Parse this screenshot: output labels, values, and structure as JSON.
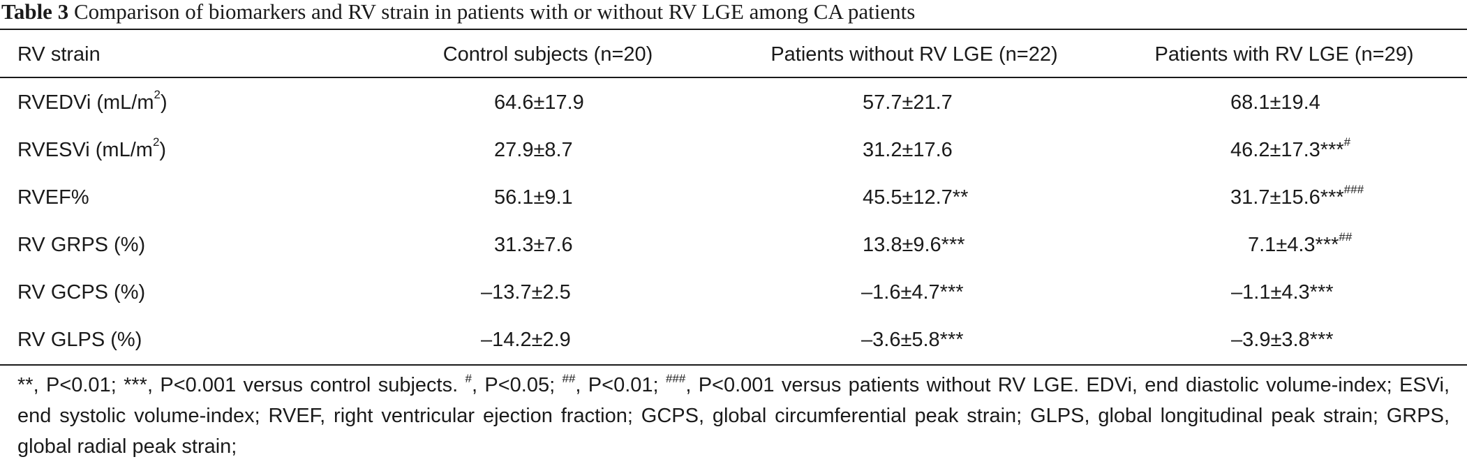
{
  "caption": {
    "label": "Table 3",
    "text": "Comparison of biomarkers and RV strain in patients with or without RV LGE among CA patients"
  },
  "table": {
    "headers": [
      "RV strain",
      "Control subjects (n=20)",
      "Patients without RV LGE (n=22)",
      "Patients with RV LGE (n=29)"
    ],
    "rows": [
      {
        "label": "RVEDVi (mL/m",
        "label_sup": "2",
        "label_end": ")",
        "values": [
          {
            "text": "64.6±17.9",
            "sup": ""
          },
          {
            "text": "57.7±21.7",
            "sup": ""
          },
          {
            "text": "68.1±19.4",
            "sup": ""
          }
        ]
      },
      {
        "label": "RVESVi (mL/m",
        "label_sup": "2",
        "label_end": ")",
        "values": [
          {
            "text": "27.9±8.7",
            "sup": ""
          },
          {
            "text": "31.2±17.6",
            "sup": ""
          },
          {
            "text": "46.2±17.3***",
            "sup": "#"
          }
        ]
      },
      {
        "label": "RVEF%",
        "label_sup": "",
        "label_end": "",
        "values": [
          {
            "text": "56.1±9.1",
            "sup": ""
          },
          {
            "text": "45.5±12.7**",
            "sup": ""
          },
          {
            "text": "31.7±15.6***",
            "sup": "###"
          }
        ]
      },
      {
        "label": "RV GRPS (%)",
        "label_sup": "",
        "label_end": "",
        "values": [
          {
            "text": "31.3±7.6",
            "sup": ""
          },
          {
            "text": "13.8±9.6***",
            "sup": ""
          },
          {
            "text": "7.1±4.3***",
            "sup": "##"
          }
        ]
      },
      {
        "label": "RV GCPS (%)",
        "label_sup": "",
        "label_end": "",
        "values": [
          {
            "text": "–13.7±2.5",
            "sup": ""
          },
          {
            "text": "–1.6±4.7***",
            "sup": ""
          },
          {
            "text": "–1.1±4.3***",
            "sup": ""
          }
        ]
      },
      {
        "label": "RV GLPS (%)",
        "label_sup": "",
        "label_end": "",
        "values": [
          {
            "text": "–14.2±2.9",
            "sup": ""
          },
          {
            "text": "–3.6±5.8***",
            "sup": ""
          },
          {
            "text": "–3.9±3.8***",
            "sup": ""
          }
        ]
      }
    ]
  },
  "footnote": {
    "p1": "**, P<0.01; ***, P<0.001 versus control subjects. ",
    "s1": "#",
    "p2": ", P<0.05; ",
    "s2": "##",
    "p3": ", P<0.01; ",
    "s3": "###",
    "p4": ", P<0.001 versus patients without RV LGE. EDVi, end diastolic volume-index; ESVi, end systolic volume-index; RVEF, right ventricular ejection fraction; GCPS, global circumferential peak strain; GLPS, global longitudinal peak strain; GRPS, global radial peak strain;"
  }
}
